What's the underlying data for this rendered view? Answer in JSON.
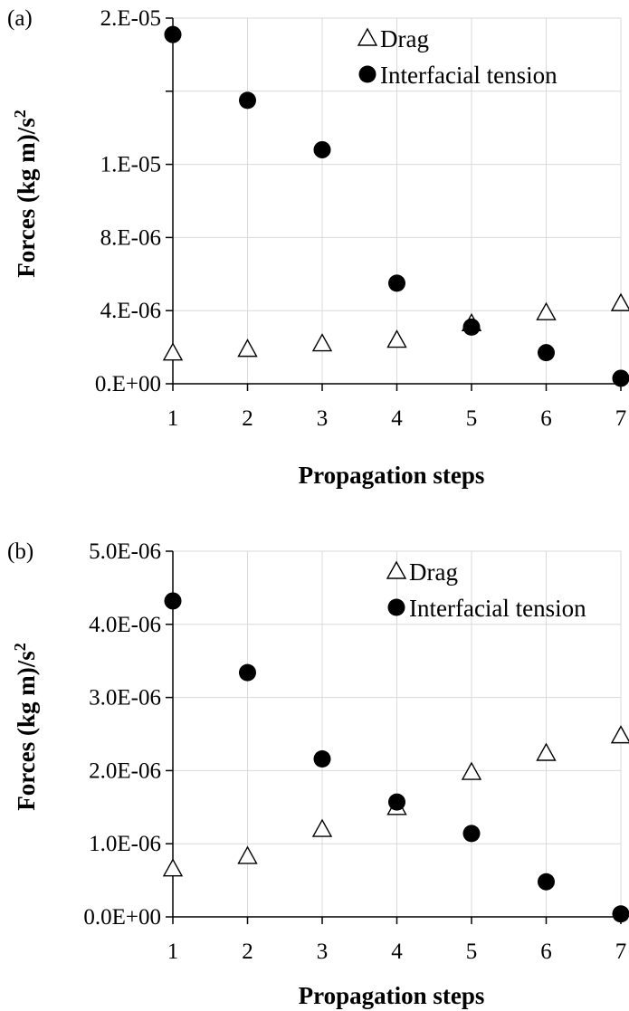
{
  "chart_data": [
    {
      "type": "scatter",
      "panel_label": "(a)",
      "xlabel": "Propagation steps",
      "ylabel": "Forces (kg m)/s",
      "ylabel_sup": "2",
      "x": [
        1,
        2,
        3,
        4,
        5,
        6,
        7
      ],
      "xlim": [
        1,
        7
      ],
      "ylim": [
        0,
        2e-05
      ],
      "yticks": [
        0,
        4e-06,
        8e-06,
        1.2e-05,
        1.6e-05,
        2e-05
      ],
      "ytick_labels": [
        "0.E+00",
        "4.E-06",
        "8.E-06",
        "1.E-05",
        "",
        "2.E-05"
      ],
      "xtick_labels": [
        "1",
        "2",
        "3",
        "4",
        "5",
        "6",
        "7"
      ],
      "grid": true,
      "legend_position": "top-right",
      "series": [
        {
          "name": "Drag",
          "marker": "open-triangle",
          "values": [
            1.7e-06,
            1.9e-06,
            2.2e-06,
            2.4e-06,
            3.3e-06,
            3.9e-06,
            4.4e-06
          ]
        },
        {
          "name": "Interfacial tension",
          "marker": "filled-circle",
          "values": [
            1.91e-05,
            1.55e-05,
            1.28e-05,
            5.5e-06,
            3.1e-06,
            1.7e-06,
            3e-07
          ]
        }
      ]
    },
    {
      "type": "scatter",
      "panel_label": "(b)",
      "xlabel": "Propagation steps",
      "ylabel": "Forces (kg m)/s",
      "ylabel_sup": "2",
      "x": [
        1,
        2,
        3,
        4,
        5,
        6,
        7
      ],
      "xlim": [
        1,
        7
      ],
      "ylim": [
        0,
        5e-06
      ],
      "yticks": [
        0,
        1e-06,
        2e-06,
        3e-06,
        4e-06,
        5e-06
      ],
      "ytick_labels": [
        "0.0E+00",
        "1.0E-06",
        "2.0E-06",
        "3.0E-06",
        "4.0E-06",
        "5.0E-06"
      ],
      "xtick_labels": [
        "1",
        "2",
        "3",
        "4",
        "5",
        "6",
        "7"
      ],
      "grid": true,
      "legend_position": "top-right",
      "series": [
        {
          "name": "Drag",
          "marker": "open-triangle",
          "values": [
            6.6e-07,
            8.3e-07,
            1.2e-06,
            1.5e-06,
            1.98e-06,
            2.24e-06,
            2.48e-06
          ]
        },
        {
          "name": "Interfacial tension",
          "marker": "filled-circle",
          "values": [
            4.32e-06,
            3.34e-06,
            2.16e-06,
            1.57e-06,
            1.14e-06,
            4.8e-07,
            4e-08
          ]
        }
      ]
    }
  ]
}
